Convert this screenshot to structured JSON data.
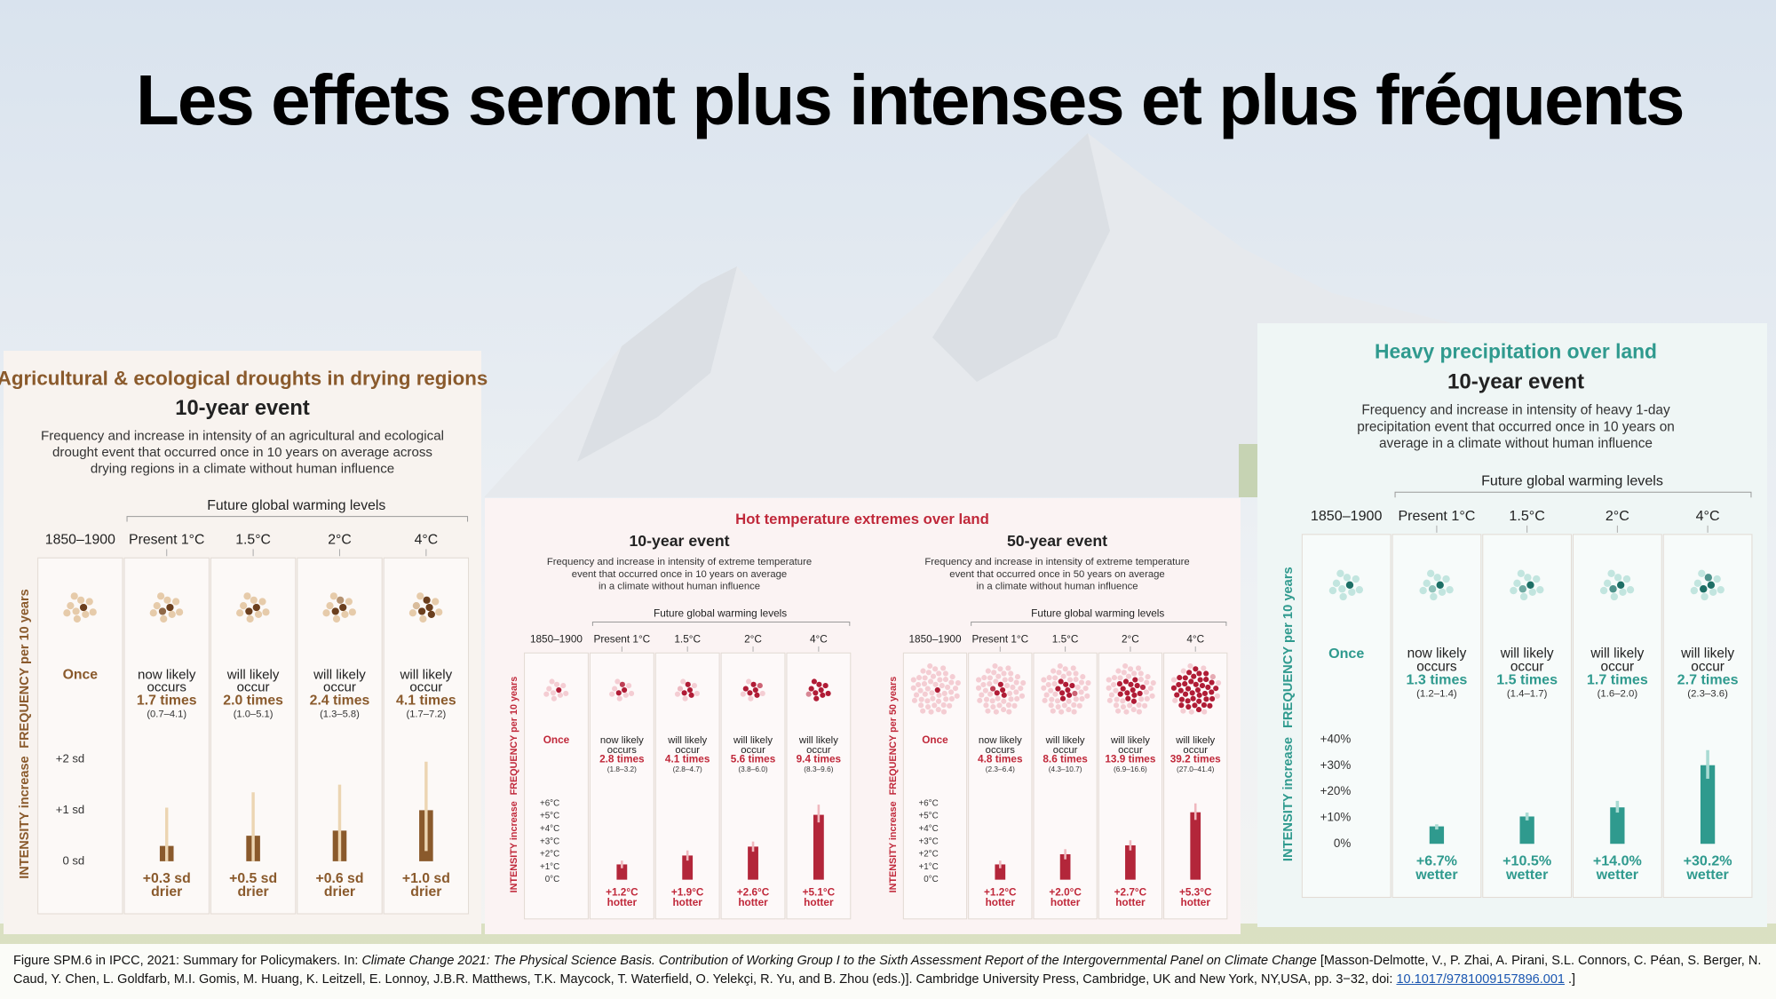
{
  "title": "Les effets seront plus intenses et plus fréquents",
  "chart_data": [
    {
      "type": "bar",
      "title": "Agricultural & ecological droughts in drying regions",
      "subtitle": "10-year event",
      "description": [
        "Frequency and increase in intensity of an agricultural and ecological",
        "drought event that occurred once in 10 years on average across",
        "drying regions in a climate without human influence"
      ],
      "group_label": "Future global warming levels",
      "categories": [
        "1850–1900",
        "Present 1°C",
        "1.5°C",
        "2°C",
        "4°C"
      ],
      "frequency_label": "FREQUENCY per 10 years",
      "frequency": {
        "dots_per_cluster": 10,
        "values": [
          1,
          1.7,
          2.0,
          2.4,
          4.1
        ],
        "value_labels": [
          "Once",
          "1.7 times",
          "2.0 times",
          "2.4 times",
          "4.1 times"
        ],
        "notes": [
          null,
          [
            "now likely",
            "occurs"
          ],
          [
            "will likely",
            "occur"
          ],
          [
            "will likely",
            "occur"
          ],
          [
            "will likely",
            "occur"
          ]
        ],
        "ranges": [
          null,
          "(0.7–4.1)",
          "(1.0–5.1)",
          "(1.3–5.8)",
          "(1.7–7.2)"
        ]
      },
      "intensity_label": "INTENSITY increase",
      "intensity": {
        "values": [
          null,
          0.3,
          0.5,
          0.6,
          1.0
        ],
        "value_labels": [
          null,
          "+0.3 sd",
          "+0.5 sd",
          "+0.6 sd",
          "+1.0 sd"
        ],
        "note": "drier",
        "lower": [
          null,
          0,
          0,
          0,
          0.2
        ],
        "upper": [
          null,
          1.05,
          1.35,
          1.5,
          1.95
        ]
      },
      "ylim": [
        0,
        2
      ],
      "yticks": [
        {
          "value": 0,
          "label": "0 sd"
        },
        {
          "value": 1,
          "label": "+1 sd"
        },
        {
          "value": 2,
          "label": "+2 sd"
        }
      ],
      "accent": "#8a5a2c",
      "bar_color": "#8a5a2c",
      "whisker_color": "#ecd5b2",
      "dot_color": "#e6cbaa",
      "dot_highlight": "#6b3f1e"
    },
    {
      "type": "bar",
      "title": "Hot temperature extremes over land",
      "subtitle": "10-year event",
      "description": [
        "Frequency and increase in intensity of extreme temperature",
        "event that occurred once in 10 years on average",
        "in a climate without human influence"
      ],
      "group_label": "Future global warming levels",
      "categories": [
        "1850–1900",
        "Present 1°C",
        "1.5°C",
        "2°C",
        "4°C"
      ],
      "frequency_label": "FREQUENCY per 10 years",
      "frequency": {
        "dots_per_cluster": 10,
        "values": [
          1,
          2.8,
          4.1,
          5.6,
          9.4
        ],
        "value_labels": [
          "Once",
          "2.8 times",
          "4.1 times",
          "5.6 times",
          "9.4 times"
        ],
        "notes": [
          null,
          [
            "now likely",
            "occurs"
          ],
          [
            "will likely",
            "occur"
          ],
          [
            "will likely",
            "occur"
          ],
          [
            "will likely",
            "occur"
          ]
        ],
        "ranges": [
          null,
          "(1.8–3.2)",
          "(2.8–4.7)",
          "(3.8–6.0)",
          "(8.3–9.6)"
        ]
      },
      "intensity_label": "INTENSITY increase",
      "intensity": {
        "values": [
          null,
          1.2,
          1.9,
          2.6,
          5.1
        ],
        "value_labels": [
          null,
          "+1.2°C",
          "+1.9°C",
          "+2.6°C",
          "+5.1°C"
        ],
        "note": "hotter",
        "lower": [
          null,
          0.9,
          1.5,
          2.2,
          4.5
        ],
        "upper": [
          null,
          1.5,
          2.3,
          3.0,
          5.9
        ]
      },
      "ylim": [
        0,
        6
      ],
      "yticks": [
        {
          "value": 0,
          "label": "0°C"
        },
        {
          "value": 1,
          "label": "+1°C"
        },
        {
          "value": 2,
          "label": "+2°C"
        },
        {
          "value": 3,
          "label": "+3°C"
        },
        {
          "value": 4,
          "label": "+4°C"
        },
        {
          "value": 5,
          "label": "+5°C"
        },
        {
          "value": 6,
          "label": "+6°C"
        }
      ],
      "accent": "#c0283a",
      "bar_color": "#b3263a",
      "whisker_color": "#f0b8be",
      "dot_color": "#f4cdd3",
      "dot_highlight": "#b01c36"
    },
    {
      "type": "bar",
      "subtitle": "50-year event",
      "description": [
        "Frequency and increase in intensity of extreme temperature",
        "event that occurred once in 50 years on average",
        "in a climate without human influence"
      ],
      "group_label": "Future global warming levels",
      "categories": [
        "1850–1900",
        "Present 1°C",
        "1.5°C",
        "2°C",
        "4°C"
      ],
      "frequency_label": "FREQUENCY per 50 years",
      "frequency": {
        "dots_per_cluster": 50,
        "values": [
          1,
          4.8,
          8.6,
          13.9,
          39.2
        ],
        "value_labels": [
          "Once",
          "4.8 times",
          "8.6 times",
          "13.9 times",
          "39.2 times"
        ],
        "notes": [
          null,
          [
            "now likely",
            "occurs"
          ],
          [
            "will likely",
            "occur"
          ],
          [
            "will likely",
            "occur"
          ],
          [
            "will likely",
            "occur"
          ]
        ],
        "ranges": [
          null,
          "(2.3–6.4)",
          "(4.3–10.7)",
          "(6.9–16.6)",
          "(27.0–41.4)"
        ]
      },
      "intensity_label": "INTENSITY increase",
      "intensity": {
        "values": [
          null,
          1.2,
          2.0,
          2.7,
          5.3
        ],
        "value_labels": [
          null,
          "+1.2°C",
          "+2.0°C",
          "+2.7°C",
          "+5.3°C"
        ],
        "note": "hotter",
        "lower": [
          null,
          0.9,
          1.6,
          2.3,
          4.7
        ],
        "upper": [
          null,
          1.5,
          2.4,
          3.1,
          6.0
        ]
      },
      "ylim": [
        0,
        6
      ],
      "yticks": [
        {
          "value": 0,
          "label": "0°C"
        },
        {
          "value": 1,
          "label": "+1°C"
        },
        {
          "value": 2,
          "label": "+2°C"
        },
        {
          "value": 3,
          "label": "+3°C"
        },
        {
          "value": 4,
          "label": "+4°C"
        },
        {
          "value": 5,
          "label": "+5°C"
        },
        {
          "value": 6,
          "label": "+6°C"
        }
      ],
      "accent": "#c0283a",
      "bar_color": "#b3263a",
      "whisker_color": "#f0b8be",
      "dot_color": "#f4cdd3",
      "dot_highlight": "#b01c36"
    },
    {
      "type": "bar",
      "title": "Heavy precipitation over land",
      "subtitle": "10-year event",
      "description": [
        "Frequency and increase in intensity of heavy 1-day",
        "precipitation event that occurred once in 10 years on",
        "average in a climate without human influence"
      ],
      "group_label": "Future global warming levels",
      "categories": [
        "1850–1900",
        "Present 1°C",
        "1.5°C",
        "2°C",
        "4°C"
      ],
      "frequency_label": "FREQUENCY per 10 years",
      "frequency": {
        "dots_per_cluster": 10,
        "values": [
          1,
          1.3,
          1.5,
          1.7,
          2.7
        ],
        "value_labels": [
          "Once",
          "1.3 times",
          "1.5 times",
          "1.7 times",
          "2.7 times"
        ],
        "notes": [
          null,
          [
            "now likely",
            "occurs"
          ],
          [
            "will likely",
            "occur"
          ],
          [
            "will likely",
            "occur"
          ],
          [
            "will likely",
            "occur"
          ]
        ],
        "ranges": [
          null,
          "(1.2–1.4)",
          "(1.4–1.7)",
          "(1.6–2.0)",
          "(2.3–3.6)"
        ]
      },
      "intensity_label": "INTENSITY increase",
      "intensity": {
        "values": [
          null,
          6.7,
          10.5,
          14.0,
          30.2
        ],
        "value_labels": [
          null,
          "+6.7%",
          "+10.5%",
          "+14.0%",
          "+30.2%"
        ],
        "note": "wetter",
        "lower": [
          null,
          5.5,
          9.0,
          12.0,
          25.0
        ],
        "upper": [
          null,
          7.5,
          12.0,
          16.5,
          36.0
        ]
      },
      "ylim": [
        0,
        40
      ],
      "yticks": [
        {
          "value": 0,
          "label": "0%"
        },
        {
          "value": 10,
          "label": "+10%"
        },
        {
          "value": 20,
          "label": "+20%"
        },
        {
          "value": 30,
          "label": "+30%"
        },
        {
          "value": 40,
          "label": "+40%"
        }
      ],
      "accent": "#2f9a8e",
      "bar_color": "#2f9a8e",
      "whisker_color": "#a9dbd3",
      "dot_color": "#c2e5df",
      "dot_highlight": "#1e6f66"
    }
  ],
  "caption": {
    "text": "Figure SPM.6 in IPCC, 2021: Summary for Policymakers. In:",
    "source": "Climate Change 2021: The Physical Science Basis. Contribution of Working Group I to the Sixth Assessment Report of the Intergovernmental Panel on Climate Change",
    "details": "[Masson-Delmotte, V., P. Zhai, A. Pirani, S.L. Connors, C. Péan, S. Berger, N. Caud, Y. Chen, L. Goldfarb, M.I. Gomis, M. Huang, K. Leitzell, E. Lonnoy, J.B.R. Matthews, T.K. Maycock, T. Waterfield, O. Yelekçi, R. Yu, and B. Zhou (eds.)]. Cambridge University Press, Cambridge, UK and New York, NY,USA, pp. 3−32, doi:",
    "doi": "10.1017/9781009157896.001",
    "end": ".]"
  }
}
